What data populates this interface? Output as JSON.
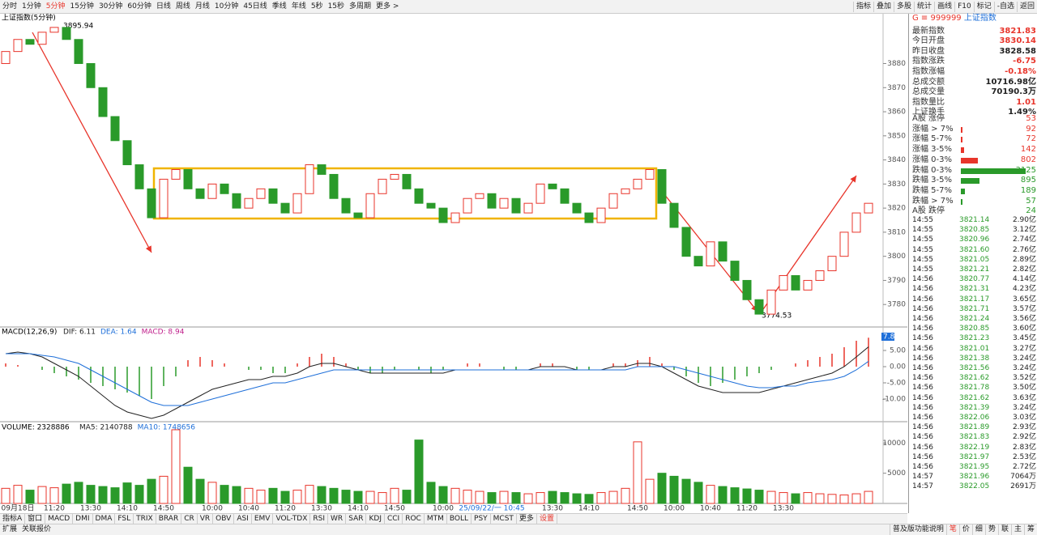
{
  "toolbar": {
    "periods": [
      "分时",
      "1分钟",
      "5分钟",
      "15分钟",
      "30分钟",
      "60分钟",
      "日线",
      "周线",
      "月线",
      "10分钟",
      "45日线",
      "季线",
      "年线",
      "5秒",
      "15秒",
      "多周期",
      "更多 >"
    ],
    "tools": [
      "指标",
      "叠加",
      "多股",
      "统计",
      "画线",
      "F10",
      "标记",
      "-自选",
      "返回"
    ]
  },
  "chart_data": [
    {
      "type": "candlestick",
      "title": "上证指数(5分钟)",
      "up_color": "#e8352b",
      "down_color": "#2a9a2a",
      "open": [
        3880,
        3885,
        3890,
        3888,
        3893,
        3895,
        3890,
        3880,
        3870,
        3858,
        3848,
        3838,
        3828,
        3816,
        3832,
        3836,
        3828,
        3824,
        3830,
        3826,
        3820,
        3824,
        3828,
        3822,
        3818,
        3826,
        3838,
        3834,
        3824,
        3818,
        3816,
        3826,
        3832,
        3834,
        3828,
        3822,
        3820,
        3814,
        3818,
        3824,
        3826,
        3820,
        3824,
        3818,
        3822,
        3830,
        3828,
        3822,
        3818,
        3814,
        3820,
        3826,
        3828,
        3832,
        3836,
        3822,
        3812,
        3800,
        3796,
        3806,
        3798,
        3790,
        3782,
        3776,
        3786,
        3792,
        3786,
        3790,
        3794,
        3800,
        3810,
        3818
      ],
      "close": [
        3885,
        3890,
        3888,
        3893,
        3895,
        3890,
        3880,
        3870,
        3858,
        3848,
        3838,
        3828,
        3816,
        3832,
        3836,
        3828,
        3824,
        3830,
        3826,
        3820,
        3824,
        3828,
        3822,
        3818,
        3826,
        3838,
        3834,
        3824,
        3818,
        3816,
        3826,
        3832,
        3834,
        3828,
        3822,
        3820,
        3814,
        3818,
        3824,
        3826,
        3820,
        3824,
        3818,
        3822,
        3830,
        3828,
        3822,
        3818,
        3814,
        3820,
        3826,
        3828,
        3832,
        3836,
        3822,
        3812,
        3800,
        3796,
        3806,
        3798,
        3790,
        3782,
        3776,
        3786,
        3792,
        3786,
        3790,
        3794,
        3800,
        3810,
        3818,
        3822
      ],
      "ylim": [
        3771,
        3901
      ],
      "yticks": [
        3780,
        3790,
        3800,
        3810,
        3820,
        3830,
        3840,
        3850,
        3860,
        3870,
        3880
      ],
      "annotations": [
        "3895.94",
        "3774.53"
      ]
    },
    {
      "type": "macd",
      "title": "MACD(12,26,9)",
      "legend": [
        {
          "text": "DIF: 6.11",
          "color": "#222222"
        },
        {
          "text": "DEA: 1.64",
          "color": "#1e6fd9"
        },
        {
          "text": "MACD: 8.94",
          "color": "#c0208c"
        }
      ],
      "badge": "7.8",
      "histogram": [
        1,
        0.5,
        0,
        -1,
        -2,
        -3,
        -4,
        -5,
        -6,
        -7,
        -8,
        -9,
        -10,
        -6,
        -3,
        2,
        3,
        2,
        1,
        0,
        -1,
        -1,
        -2,
        -2,
        1,
        3,
        4,
        3,
        1,
        -1,
        -2,
        -2,
        -1,
        0,
        -1,
        -2,
        -1,
        0,
        1,
        1,
        0,
        -1,
        -1,
        0,
        1,
        1,
        0,
        -1,
        -1,
        0,
        1,
        1,
        2,
        3,
        1,
        -1,
        -3,
        -5,
        -6,
        -5,
        -4,
        -3,
        -2,
        -1,
        0,
        1,
        2,
        3,
        4,
        6,
        8,
        8.94
      ],
      "series": [
        {
          "color": "#222222",
          "values": [
            4,
            4.5,
            4,
            3,
            1,
            -1,
            -3,
            -6,
            -9,
            -12,
            -14,
            -15,
            -16,
            -15,
            -13,
            -11,
            -9,
            -7,
            -6,
            -5,
            -4,
            -4,
            -3,
            -3,
            -2,
            0,
            1,
            1,
            0,
            -1,
            -2,
            -2,
            -2,
            -2,
            -2,
            -2,
            -2,
            -1,
            -1,
            -1,
            -1,
            -1,
            -1,
            -1,
            0,
            0,
            0,
            -1,
            -1,
            -1,
            0,
            0,
            1,
            1,
            0,
            -2,
            -4,
            -6,
            -7,
            -8,
            -8,
            -8,
            -8,
            -7,
            -6,
            -5,
            -4,
            -3,
            -2,
            0,
            3,
            6.11
          ]
        },
        {
          "color": "#1e6fd9",
          "values": [
            4,
            4,
            4,
            3.5,
            3,
            2,
            1,
            -1,
            -3,
            -5,
            -7,
            -9,
            -11,
            -12,
            -12,
            -12,
            -11,
            -10,
            -9,
            -8,
            -7,
            -6,
            -5,
            -5,
            -4,
            -3,
            -2,
            -1,
            -1,
            -1,
            -1,
            -1,
            -1,
            -1,
            -1,
            -1,
            -1,
            -1,
            -1,
            -1,
            -1,
            -1,
            -1,
            -1,
            -1,
            -1,
            -1,
            -1,
            -1,
            -1,
            -1,
            -1,
            0,
            0,
            0,
            0,
            -1,
            -2,
            -3,
            -4,
            -5,
            -6,
            -6.5,
            -6.5,
            -6,
            -6,
            -5,
            -4.5,
            -4,
            -3,
            -1,
            1.64
          ]
        }
      ],
      "ylim": [
        -16.75,
        12
      ],
      "yticks": [
        {
          "value": 5,
          "label": "5.00"
        },
        {
          "value": 0,
          "label": "0.00"
        },
        {
          "value": -5,
          "label": "-5.00"
        },
        {
          "value": -10,
          "label": "-10.00"
        }
      ]
    },
    {
      "type": "volume",
      "title": "VOLUME: 2328886",
      "legend": [
        {
          "text": "MA5: 2140788",
          "color": "#222222"
        },
        {
          "text": "MA10: 1748656",
          "color": "#1e6fd9"
        }
      ],
      "values": [
        2500,
        3000,
        2200,
        2800,
        2600,
        3200,
        3500,
        3000,
        2800,
        2600,
        3400,
        3000,
        4000,
        4500,
        12200,
        6000,
        4000,
        3500,
        3000,
        2800,
        2500,
        2200,
        2500,
        2000,
        2200,
        3000,
        2800,
        2500,
        2200,
        2000,
        2000,
        1800,
        2500,
        2200,
        10500,
        3500,
        2800,
        2500,
        2200,
        2000,
        1800,
        2000,
        1800,
        1600,
        1800,
        2000,
        1800,
        1600,
        1500,
        1800,
        2000,
        2500,
        10200,
        4000,
        5000,
        4500,
        4000,
        3500,
        3000,
        2800,
        2600,
        2400,
        2200,
        2000,
        1800,
        1600,
        1800,
        1600,
        1500,
        1400,
        1600,
        2000
      ],
      "categories": [
        null,
        "09月18日",
        null,
        null,
        "11:20",
        null,
        null,
        "13:30",
        null,
        null,
        "14:10",
        null,
        null,
        "14:50",
        null,
        null,
        null,
        "10:00",
        null,
        null,
        "10:40",
        null,
        null,
        "11:20",
        null,
        null,
        "13:30",
        null,
        null,
        "14:10",
        null,
        null,
        "14:50",
        null,
        null,
        null,
        "10:00",
        null,
        null,
        null,
        "25/09/22/一 10:45",
        null,
        null,
        null,
        null,
        "13:30",
        null,
        null,
        "14:10",
        null,
        null,
        null,
        "14:50",
        null,
        null,
        "10:00",
        null,
        null,
        "10:40",
        null,
        null,
        "11:20",
        null,
        null,
        "13:30",
        null,
        null,
        null,
        null,
        null,
        null,
        null
      ],
      "ylim": [
        0,
        13400
      ],
      "yticks": [
        5000,
        10000
      ]
    }
  ],
  "panel": {
    "code": "999999",
    "name": "上证指数",
    "quote": [
      {
        "label": "最新指数",
        "value": "3821.83",
        "color": "#e8352b"
      },
      {
        "label": "今日开盘",
        "value": "3830.14",
        "color": "#e8352b"
      },
      {
        "label": "昨日收盘",
        "value": "3828.58",
        "color": "#222222"
      },
      {
        "label": "指数涨跌",
        "value": "-6.75",
        "color": "#e8352b"
      },
      {
        "label": "指数涨幅",
        "value": "-0.18%",
        "color": "#e8352b"
      },
      {
        "label": "总成交额",
        "value": "10716.98亿",
        "color": "#222222"
      },
      {
        "label": "总成交量",
        "value": "70190.3万",
        "color": "#222222"
      },
      {
        "label": "指数量比",
        "value": "1.01",
        "color": "#e8352b"
      },
      {
        "label": "上证换手",
        "value": "1.49%",
        "color": "#222222"
      }
    ],
    "breadth": [
      {
        "label": "A股 涨停",
        "value": 53,
        "color": "#e8352b"
      },
      {
        "label": "涨幅 > 7%",
        "value": 92,
        "color": "#e8352b"
      },
      {
        "label": "涨幅 5-7%",
        "value": 72,
        "color": "#e8352b"
      },
      {
        "label": "涨幅 3-5%",
        "value": 142,
        "color": "#e8352b"
      },
      {
        "label": "涨幅 0-3%",
        "value": 802,
        "color": "#e8352b"
      },
      {
        "label": "跌幅 0-3%",
        "value": 3125,
        "color": "#2a9a2a"
      },
      {
        "label": "跌幅 3-5%",
        "value": 895,
        "color": "#2a9a2a"
      },
      {
        "label": "跌幅 5-7%",
        "value": 189,
        "color": "#2a9a2a"
      },
      {
        "label": "跌幅 > 7%",
        "value": 57,
        "color": "#2a9a2a"
      },
      {
        "label": "A股 跌停",
        "value": 24,
        "color": "#2a9a2a"
      }
    ],
    "ticks": [
      [
        "14:55",
        "3821.14",
        "2.90亿"
      ],
      [
        "14:55",
        "3820.85",
        "3.12亿"
      ],
      [
        "14:55",
        "3820.96",
        "2.74亿"
      ],
      [
        "14:55",
        "3821.60",
        "2.76亿"
      ],
      [
        "14:55",
        "3821.05",
        "2.89亿"
      ],
      [
        "14:55",
        "3821.21",
        "2.82亿"
      ],
      [
        "14:56",
        "3820.77",
        "4.14亿"
      ],
      [
        "14:56",
        "3821.31",
        "4.23亿"
      ],
      [
        "14:56",
        "3821.17",
        "3.65亿"
      ],
      [
        "14:56",
        "3821.71",
        "3.57亿"
      ],
      [
        "14:56",
        "3821.24",
        "3.56亿"
      ],
      [
        "14:56",
        "3820.85",
        "3.60亿"
      ],
      [
        "14:56",
        "3821.23",
        "3.45亿"
      ],
      [
        "14:56",
        "3821.01",
        "3.27亿"
      ],
      [
        "14:56",
        "3821.38",
        "3.24亿"
      ],
      [
        "14:56",
        "3821.56",
        "3.24亿"
      ],
      [
        "14:56",
        "3821.62",
        "3.52亿"
      ],
      [
        "14:56",
        "3821.78",
        "3.50亿"
      ],
      [
        "14:56",
        "3821.62",
        "3.63亿"
      ],
      [
        "14:56",
        "3821.39",
        "3.24亿"
      ],
      [
        "14:56",
        "3822.06",
        "3.03亿"
      ],
      [
        "14:56",
        "3821.89",
        "2.93亿"
      ],
      [
        "14:56",
        "3821.83",
        "2.92亿"
      ],
      [
        "14:56",
        "3822.19",
        "2.83亿"
      ],
      [
        "14:56",
        "3821.97",
        "2.53亿"
      ],
      [
        "14:56",
        "3821.95",
        "2.72亿"
      ],
      [
        "14:57",
        "3821.96",
        "7064万"
      ],
      [
        "14:57",
        "3822.05",
        "2691万"
      ]
    ]
  },
  "tabs": [
    "指标A",
    "窗口",
    "MACD",
    "DMI",
    "DMA",
    "FSL",
    "TRIX",
    "BRAR",
    "CR",
    "VR",
    "OBV",
    "ASI",
    "EMV",
    "VOL-TDX",
    "RSI",
    "WR",
    "SAR",
    "KDJ",
    "CCI",
    "ROC",
    "MTM",
    "BOLL",
    "PSY",
    "MCST",
    "更多",
    "设置"
  ],
  "status": {
    "left": [
      "扩展",
      "关联报价"
    ],
    "right": [
      "普及版功能说明",
      "笔",
      "价",
      "细",
      "势",
      "联",
      "主",
      "筹"
    ]
  }
}
